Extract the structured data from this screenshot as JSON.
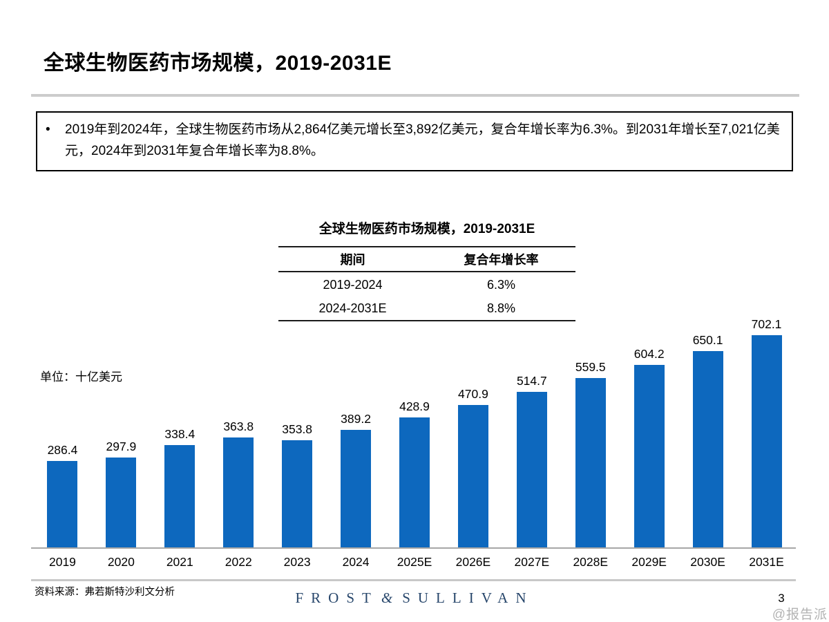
{
  "page": {
    "title": "全球生物医药市场规模，2019-2031E",
    "bullet_glyph": "•",
    "bullet_text": "2019年到2024年，全球生物医药市场从2,864亿美元增长至3,892亿美元，复合年增长率为6.3%。到2031年增长至7,021亿美元，2024年到2031年复合年增长率为8.8%。",
    "unit_label": "单位：十亿美元",
    "source": "资料来源：弗若斯特沙利文分析",
    "page_number": "3",
    "watermark": "@报告派",
    "logo": {
      "word1": "FROST",
      "amp": "&",
      "word2": "SULLIVAN"
    }
  },
  "cagr_table": {
    "title": "全球生物医药市场规模，2019-2031E",
    "headers": [
      "期间",
      "复合年增长率"
    ],
    "rows": [
      [
        "2019-2024",
        "6.3%"
      ],
      [
        "2024-2031E",
        "8.8%"
      ]
    ]
  },
  "chart_data": {
    "type": "bar",
    "title": "全球生物医药市场规模，2019-2031E",
    "unit": "十亿美元",
    "categories": [
      "2019",
      "2020",
      "2021",
      "2022",
      "2023",
      "2024",
      "2025E",
      "2026E",
      "2027E",
      "2028E",
      "2029E",
      "2030E",
      "2031E"
    ],
    "values": [
      286.4,
      297.9,
      338.4,
      363.8,
      353.8,
      389.2,
      428.9,
      470.9,
      514.7,
      559.5,
      604.2,
      650.1,
      702.1
    ],
    "bar_color": "#0d68be",
    "axis_color": "#a6a6a6",
    "ylim": [
      0,
      750
    ],
    "grid": false,
    "legend": false,
    "data_labels": true
  }
}
